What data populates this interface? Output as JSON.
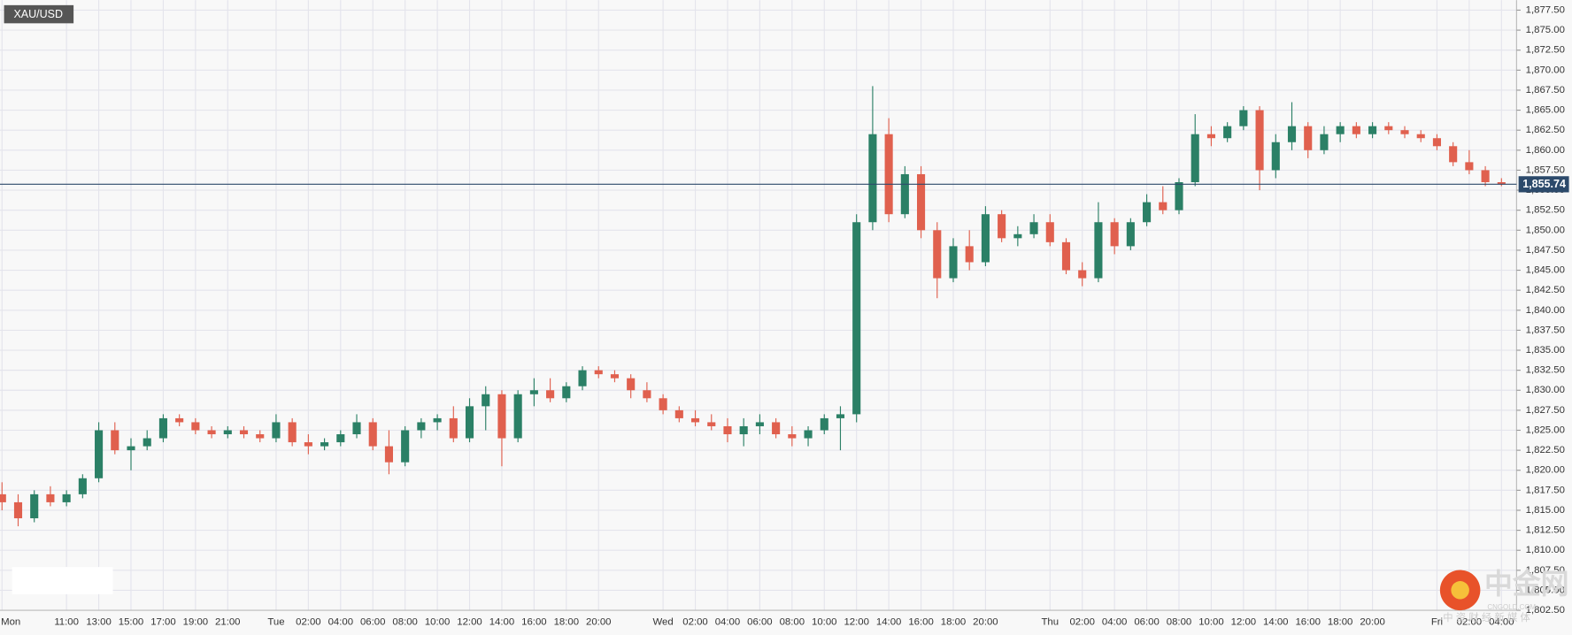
{
  "chart_data": {
    "type": "candlestick",
    "symbol": "XAU/USD",
    "up_color": "#2b8066",
    "down_color": "#e0604e",
    "categories": [
      "Mon",
      null,
      null,
      null,
      "11:00",
      null,
      "13:00",
      null,
      "15:00",
      null,
      "17:00",
      null,
      "19:00",
      null,
      "21:00",
      null,
      null,
      "Tue",
      null,
      "02:00",
      null,
      "04:00",
      null,
      "06:00",
      null,
      "08:00",
      null,
      "10:00",
      null,
      "12:00",
      null,
      "14:00",
      null,
      "16:00",
      null,
      "18:00",
      null,
      "20:00",
      null,
      null,
      null,
      "Wed",
      null,
      "02:00",
      null,
      "04:00",
      null,
      "06:00",
      null,
      "08:00",
      null,
      "10:00",
      null,
      "12:00",
      null,
      "14:00",
      null,
      "16:00",
      null,
      "18:00",
      null,
      "20:00",
      null,
      null,
      null,
      "Thu",
      null,
      "02:00",
      null,
      "04:00",
      null,
      "06:00",
      null,
      "08:00",
      null,
      "10:00",
      null,
      "12:00",
      null,
      "14:00",
      null,
      "16:00",
      null,
      "18:00",
      null,
      "20:00",
      null,
      null,
      null,
      "Fri",
      null,
      "02:00",
      null,
      "04:00"
    ],
    "open": [
      1817,
      1816,
      1814,
      1817,
      1816,
      1817,
      1819,
      1825,
      1822.5,
      1823,
      1824,
      1826.5,
      1826,
      1825,
      1824.5,
      1825,
      1824.5,
      1824,
      1826,
      1823.5,
      1823,
      1823.5,
      1824.5,
      1826,
      1823,
      1821,
      1825,
      1826,
      1826.5,
      1824,
      1828,
      1829.5,
      1824,
      1829.5,
      1830,
      1829,
      1830.5,
      1832.5,
      1832,
      1831.5,
      1830,
      1829,
      1827.5,
      1826.5,
      1826,
      1825.5,
      1824.5,
      1825.5,
      1826,
      1824.5,
      1824,
      1825,
      1826.5,
      1827,
      1851,
      1862,
      1852,
      1857,
      1850,
      1844,
      1848,
      1846,
      1852,
      1849,
      1849.5,
      1851,
      1848.5,
      1845,
      1844,
      1851,
      1848,
      1851,
      1853.5,
      1852.5,
      1856,
      1862,
      1861.5,
      1863,
      1865,
      1857.5,
      1861,
      1863,
      1860,
      1862,
      1863,
      1862,
      1863,
      1862.5,
      1862,
      1861.5,
      1860.5,
      1858.5,
      1857.5,
      1856
    ],
    "high": [
      1818.5,
      1817,
      1817.5,
      1818,
      1817.5,
      1819.5,
      1826,
      1826,
      1824,
      1825,
      1827,
      1827,
      1826.5,
      1825.5,
      1825.5,
      1825.5,
      1825,
      1827,
      1826.5,
      1824.5,
      1824,
      1825,
      1827,
      1826.5,
      1825,
      1825.5,
      1826.5,
      1827,
      1828,
      1829,
      1830.5,
      1830,
      1830,
      1831.5,
      1831.5,
      1831,
      1833,
      1833,
      1832.5,
      1832,
      1831,
      1829.5,
      1828,
      1827.5,
      1827,
      1826.5,
      1826.5,
      1827,
      1826.5,
      1825.5,
      1825.5,
      1827,
      1828,
      1852,
      1868,
      1864,
      1858,
      1858,
      1851,
      1849,
      1850,
      1853,
      1852.5,
      1850.5,
      1852,
      1852,
      1849,
      1846,
      1853.5,
      1851.5,
      1851.5,
      1854.5,
      1855.5,
      1856.5,
      1864.5,
      1863,
      1863.5,
      1865.5,
      1865.5,
      1862,
      1866,
      1863.5,
      1863,
      1863.5,
      1863.5,
      1863.5,
      1863.5,
      1863,
      1862.5,
      1862,
      1861,
      1860,
      1858,
      1856.5
    ],
    "low": [
      1815,
      1813,
      1813.5,
      1815.5,
      1815.5,
      1816.5,
      1818.5,
      1822,
      1820,
      1822.5,
      1823.5,
      1825.5,
      1824.5,
      1824,
      1824,
      1824,
      1823.5,
      1823.5,
      1823,
      1822,
      1822.5,
      1823,
      1824,
      1822.5,
      1819.5,
      1820.5,
      1824,
      1825,
      1823.5,
      1823.5,
      1825,
      1820.5,
      1823.5,
      1828,
      1828.5,
      1828.5,
      1830,
      1831.5,
      1831,
      1829,
      1828.5,
      1827,
      1826,
      1825.5,
      1825,
      1823.5,
      1823,
      1824.5,
      1824,
      1823,
      1823,
      1824.5,
      1822.5,
      1826,
      1850,
      1851,
      1851.5,
      1849,
      1841.5,
      1843.5,
      1845,
      1845.5,
      1848.5,
      1848,
      1849,
      1848,
      1844.5,
      1843,
      1843.5,
      1847,
      1847.5,
      1850.5,
      1852,
      1852,
      1855.5,
      1860.5,
      1861,
      1862.5,
      1855,
      1856.5,
      1860,
      1859,
      1859.5,
      1861,
      1861.5,
      1861.5,
      1862,
      1861.5,
      1861,
      1860,
      1858,
      1857,
      1855.5,
      1855.5
    ],
    "close": [
      1816,
      1814,
      1817,
      1816,
      1817,
      1819,
      1825,
      1822.5,
      1823,
      1824,
      1826.5,
      1826,
      1825,
      1824.5,
      1825,
      1824.5,
      1824,
      1826,
      1823.5,
      1823,
      1823.5,
      1824.5,
      1826,
      1823,
      1821,
      1825,
      1826,
      1826.5,
      1824,
      1828,
      1829.5,
      1824,
      1829.5,
      1830,
      1829,
      1830.5,
      1832.5,
      1832,
      1831.5,
      1830,
      1829,
      1827.5,
      1826.5,
      1826,
      1825.5,
      1824.5,
      1825.5,
      1826,
      1824.5,
      1824,
      1825,
      1826.5,
      1827,
      1851,
      1862,
      1852,
      1857,
      1850,
      1844,
      1848,
      1846,
      1852,
      1849,
      1849.5,
      1851,
      1848.5,
      1845,
      1844,
      1851,
      1848,
      1851,
      1853.5,
      1852.5,
      1856,
      1862,
      1861.5,
      1863,
      1865,
      1857.5,
      1861,
      1863,
      1860,
      1862,
      1863,
      1862,
      1863,
      1862.5,
      1862,
      1861.5,
      1860.5,
      1858.5,
      1857.5,
      1856,
      1855.74
    ],
    "ylim": [
      1802.5,
      1878.75
    ],
    "yticks": [
      {
        "value": 1802.5,
        "label": "1,802.50"
      },
      {
        "value": 1805,
        "label": "1,805.00"
      },
      {
        "value": 1807.5,
        "label": "1,807.50"
      },
      {
        "value": 1810,
        "label": "1,810.00"
      },
      {
        "value": 1812.5,
        "label": "1,812.50"
      },
      {
        "value": 1815,
        "label": "1,815.00"
      },
      {
        "value": 1817.5,
        "label": "1,817.50"
      },
      {
        "value": 1820,
        "label": "1,820.00"
      },
      {
        "value": 1822.5,
        "label": "1,822.50"
      },
      {
        "value": 1825,
        "label": "1,825.00"
      },
      {
        "value": 1827.5,
        "label": "1,827.50"
      },
      {
        "value": 1830,
        "label": "1,830.00"
      },
      {
        "value": 1832.5,
        "label": "1,832.50"
      },
      {
        "value": 1835,
        "label": "1,835.00"
      },
      {
        "value": 1837.5,
        "label": "1,837.50"
      },
      {
        "value": 1840,
        "label": "1,840.00"
      },
      {
        "value": 1842.5,
        "label": "1,842.50"
      },
      {
        "value": 1845,
        "label": "1,845.00"
      },
      {
        "value": 1847.5,
        "label": "1,847.50"
      },
      {
        "value": 1850,
        "label": "1,850.00"
      },
      {
        "value": 1852.5,
        "label": "1,852.50"
      },
      {
        "value": 1855,
        "label": "1,855.00"
      },
      {
        "value": 1857.5,
        "label": "1,857.50"
      },
      {
        "value": 1860,
        "label": "1,860.00"
      },
      {
        "value": 1862.5,
        "label": "1,862.50"
      },
      {
        "value": 1865,
        "label": "1,865.00"
      },
      {
        "value": 1867.5,
        "label": "1,867.50"
      },
      {
        "value": 1870,
        "label": "1,870.00"
      },
      {
        "value": 1872.5,
        "label": "1,872.50"
      },
      {
        "value": 1875,
        "label": "1,875.00"
      },
      {
        "value": 1877.5,
        "label": "1,877.50"
      }
    ],
    "last_price": {
      "value": 1855.74,
      "label": "1,855.74"
    },
    "last_price_color": "#2c4a6b",
    "grid": true,
    "watermark": {
      "logo": "中金网",
      "site": "CNGOLD.COM",
      "slogan": "中 资 财 经 新 媒 体"
    }
  }
}
